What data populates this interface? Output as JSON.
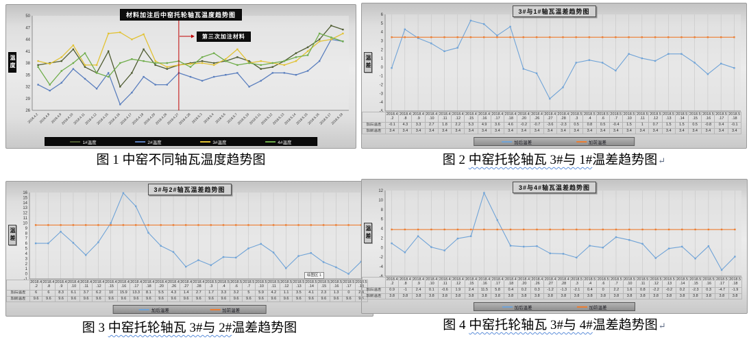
{
  "chart_data": [
    {
      "variant": "multi",
      "type": "line",
      "title": "材料加注后中窑托轮轴瓦温度趋势图",
      "ylabel": "温度",
      "ylim": [
        26,
        50
      ],
      "yticks": [
        50,
        47,
        44,
        41,
        38,
        35,
        32,
        29,
        26
      ],
      "legend_position": "bottom",
      "grid": false,
      "categories": [
        "2018.4.2",
        "2018.4.8",
        "2018.4.9",
        "2018.4.10",
        "2018.4.11",
        "2018.4.12",
        "2018.4.15",
        "2018.4.16",
        "2018.4.17",
        "2018.4.18",
        "2018.4.20",
        "2018.4.26",
        "2018.4.27",
        "2018.4.28",
        "2018.5.3",
        "2018.5.4",
        "2018.5.6",
        "2018.5.7",
        "2018.5.10",
        "2018.5.11",
        "2018.5.12",
        "2018.5.13",
        "2018.5.14",
        "2018.5.15",
        "2018.5.16",
        "2018.5.17",
        "2018.5.18"
      ],
      "series": [
        {
          "name": "1#温度",
          "color": "#4e5b31",
          "values": [
            37.5,
            38,
            38.5,
            41.5,
            37,
            35.5,
            41,
            32,
            35.5,
            41.5,
            37.5,
            36.5,
            37.5,
            38,
            38.5,
            38,
            38.5,
            39.5,
            38.5,
            36.5,
            37,
            38.5,
            40.5,
            42,
            44,
            47.5,
            46.5
          ]
        },
        {
          "name": "2#温度",
          "color": "#5b7fbe",
          "values": [
            32.5,
            31,
            33,
            36.5,
            34,
            31.5,
            35.5,
            27.5,
            30.5,
            34.5,
            32.5,
            32.5,
            35.5,
            34.5,
            33.5,
            34.5,
            35,
            35.5,
            32,
            33.5,
            35.5,
            35.5,
            35,
            36,
            38.5,
            44,
            43.5
          ]
        },
        {
          "name": "3#温度",
          "color": "#e2c233",
          "values": [
            38.5,
            37.8,
            39.5,
            42.5,
            37.5,
            37.5,
            45.5,
            45.8,
            44,
            45.3,
            38.5,
            37,
            37.5,
            37.8,
            38,
            37.5,
            39,
            41.5,
            38,
            38.5,
            38,
            37.5,
            38.5,
            41,
            43.5,
            44,
            45.5
          ]
        },
        {
          "name": "4#温度",
          "color": "#6fad4a",
          "values": [
            37,
            32.5,
            36,
            38,
            40.5,
            35.5,
            34.5,
            38,
            39,
            38.5,
            38,
            38,
            38.5,
            37,
            39.5,
            40.5,
            38.5,
            37.5,
            38,
            37.5,
            38,
            38.5,
            39.5,
            40,
            45.5,
            44.5,
            43.5
          ]
        }
      ],
      "annotation": {
        "label": "第三次加注材料",
        "category": "2018.4.27",
        "index": 12,
        "line_color": "#c00000"
      },
      "caption": {
        "prefix": "图 1 ",
        "wavy": "",
        "rest": "中窑不同轴瓦温度趋势图",
        "trailing": ""
      }
    },
    {
      "variant": "diff",
      "type": "line",
      "title": "3#与1#轴瓦温差趋势图",
      "ylabel": "温差",
      "ylim": [
        -5,
        6
      ],
      "yticks": [
        6,
        5,
        4,
        3,
        2,
        1,
        0,
        -1,
        -2,
        -3,
        -4,
        -5
      ],
      "legend_position": "bottom",
      "show_table": true,
      "categories": [
        "2018.4.2",
        "2018.4.8",
        "2018.4.9",
        "2018.4.10",
        "2018.4.11",
        "2018.4.12",
        "2018.4.15",
        "2018.4.16",
        "2018.4.17",
        "2018.4.18",
        "2018.4.20",
        "2018.4.26",
        "2018.4.27",
        "2018.4.28",
        "2018.5.3",
        "2018.5.4",
        "2018.5.6",
        "2018.5.7",
        "2018.5.10",
        "2018.5.11",
        "2018.5.12",
        "2018.5.13",
        "2018.5.14",
        "2018.5.15",
        "2018.5.16",
        "2018.5.17",
        "2018.5.18"
      ],
      "series": [
        {
          "name": "加后温差",
          "color": "#6fa3d7",
          "values": [
            -0.1,
            4.3,
            3.3,
            2.7,
            1.8,
            2.2,
            5.3,
            4.9,
            3.6,
            4.6,
            -0.2,
            -0.7,
            -3.6,
            -2.3,
            0.5,
            0.8,
            0.5,
            -0.4,
            1.5,
            1,
            0.7,
            1.5,
            1.5,
            0.5,
            -0.8,
            0.4,
            -0.1
          ]
        },
        {
          "name": "加前温差",
          "color": "#ed7d31",
          "values": [
            3.4,
            3.4,
            3.4,
            3.4,
            3.4,
            3.4,
            3.4,
            3.4,
            3.4,
            3.4,
            3.4,
            3.4,
            3.4,
            3.4,
            3.4,
            3.4,
            3.4,
            3.4,
            3.4,
            3.4,
            3.4,
            3.4,
            3.4,
            3.4,
            3.4,
            3.4,
            3.4
          ]
        }
      ],
      "caption": {
        "prefix": "图 2 ",
        "wavy": "中窑托轮轴瓦 3#与 1#",
        "rest": "温差趋势图",
        "trailing": "↵"
      }
    },
    {
      "variant": "diff",
      "type": "line",
      "title": "3#与2#轴瓦温差趋势图",
      "ylabel": "温差",
      "ylim": [
        -1,
        16
      ],
      "yticks": [
        16,
        15,
        14,
        13,
        12,
        11,
        10,
        9,
        8,
        7,
        6,
        5,
        4,
        3,
        2,
        1,
        0,
        -1
      ],
      "legend_position": "bottom",
      "show_table": true,
      "tooltip": "绘图区 1",
      "categories": [
        "2018.4.2",
        "2018.4.8",
        "2018.4.9",
        "2018.4.10",
        "2018.4.11",
        "2018.4.12",
        "2018.4.15",
        "2018.4.16",
        "2018.4.17",
        "2018.4.18",
        "2018.4.20",
        "2018.4.26",
        "2018.4.27",
        "2018.4.28",
        "2018.5.3",
        "2018.5.4",
        "2018.5.6",
        "2018.5.7",
        "2018.5.10",
        "2018.5.11",
        "2018.5.12",
        "2018.5.13",
        "2018.5.14",
        "2018.5.15",
        "2018.5.16",
        "2018.5.17",
        "2018.5.18"
      ],
      "series": [
        {
          "name": "加后温差",
          "color": "#6fa3d7",
          "values": [
            6,
            6,
            8.3,
            6.1,
            3.7,
            6.2,
            10,
            15.9,
            13.3,
            8.1,
            5.5,
            4.3,
            1.4,
            2.7,
            1.7,
            3.3,
            3.2,
            5,
            5.9,
            4.2,
            1.1,
            3.5,
            4.1,
            2.3,
            1.3,
            0,
            2.4
          ]
        },
        {
          "name": "加前温差",
          "color": "#ed7d31",
          "values": [
            9.6,
            9.6,
            9.6,
            9.6,
            9.6,
            9.6,
            9.6,
            9.6,
            9.6,
            9.6,
            9.6,
            9.6,
            9.6,
            9.6,
            9.6,
            9.6,
            9.6,
            9.6,
            9.6,
            9.6,
            9.6,
            9.6,
            9.6,
            9.6,
            9.6,
            9.6,
            9.6
          ]
        }
      ],
      "caption": {
        "prefix": "图 3 ",
        "wavy": "中窑托轮轴瓦 3#与 2#",
        "rest": "温差趋势图",
        "trailing": ""
      }
    },
    {
      "variant": "diff",
      "type": "line",
      "title": "3#与4#轴瓦温差趋势图",
      "ylabel": "温差",
      "ylim": [
        -6,
        12
      ],
      "yticks": [
        12,
        10,
        8,
        6,
        4,
        2,
        0,
        -2,
        -4,
        -6
      ],
      "legend_position": "bottom",
      "show_table": true,
      "categories": [
        "2018.4.2",
        "2018.4.8",
        "2018.4.9",
        "2018.4.10",
        "2018.4.11",
        "2018.4.12",
        "2018.4.15",
        "2018.4.16",
        "2018.4.17",
        "2018.4.18",
        "2018.4.20",
        "2018.4.26",
        "2018.4.27",
        "2018.4.28",
        "2018.5.3",
        "2018.5.4",
        "2018.5.6",
        "2018.5.7",
        "2018.5.10",
        "2018.5.11",
        "2018.5.12",
        "2018.5.13",
        "2018.5.14",
        "2018.5.15",
        "2018.5.16",
        "2018.5.17",
        "2018.5.18"
      ],
      "series": [
        {
          "name": "加后温差",
          "color": "#6fa3d7",
          "values": [
            0.9,
            -1,
            2.4,
            0.1,
            -0.6,
            1.9,
            2.4,
            11.5,
            5.8,
            0.4,
            0.2,
            0.3,
            -1.2,
            -1.3,
            -2.1,
            0.4,
            0,
            2.2,
            1.6,
            0.8,
            -2.2,
            -0.2,
            0.2,
            -2.3,
            0.3,
            -4.7,
            -1.9
          ]
        },
        {
          "name": "加前温差",
          "color": "#ed7d31",
          "values": [
            3.8,
            3.8,
            3.8,
            3.8,
            3.8,
            3.8,
            3.8,
            3.8,
            3.8,
            3.8,
            3.8,
            3.8,
            3.8,
            3.8,
            3.8,
            3.8,
            3.8,
            3.8,
            3.8,
            3.8,
            3.8,
            3.8,
            3.8,
            3.8,
            3.8,
            3.8,
            3.8
          ]
        }
      ],
      "caption": {
        "prefix": "图 4 ",
        "wavy": "中窑托轮轴瓦 3#与 4#",
        "rest": "温差趋势图",
        "trailing": "↵"
      }
    }
  ]
}
